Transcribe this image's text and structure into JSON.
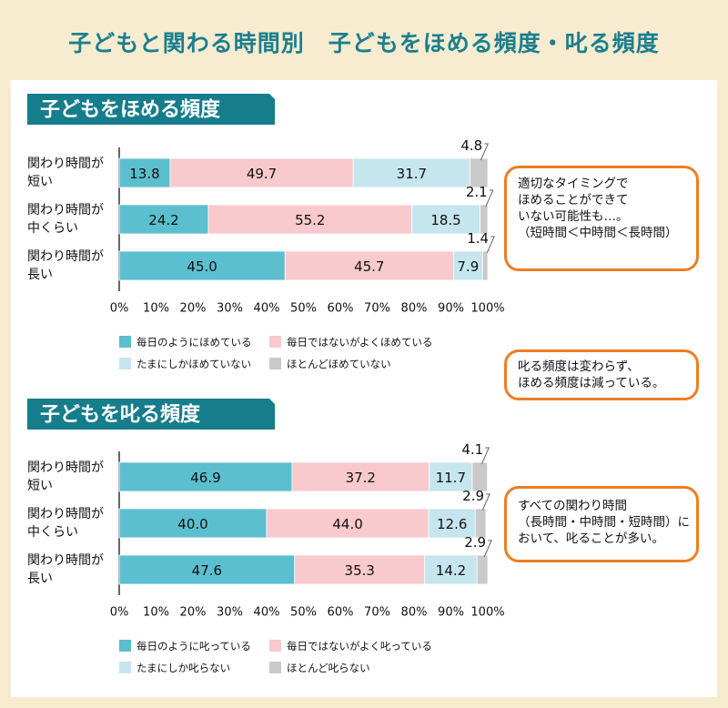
{
  "title": "子どもと関わる時間別　子どもをほめる頻度・叱る頻度",
  "colors": {
    "c1": "#5bbfcf",
    "c2": "#f8c9cd",
    "c3": "#c5e6ee",
    "c4": "#c9c9c9",
    "header": "#167d8c",
    "accent": "#ee7d22",
    "bg": "#f8ecd0"
  },
  "chart_data": [
    {
      "type": "bar",
      "stacked": true,
      "orientation": "horizontal",
      "title": "子どもをほめる頻度",
      "categories": [
        [
          "関わり時間が",
          "短い"
        ],
        [
          "関わり時間が",
          "中くらい"
        ],
        [
          "関わり時間が",
          "長い"
        ]
      ],
      "series": [
        {
          "name": "毎日のようにほめている",
          "values": [
            13.8,
            24.2,
            45.0
          ]
        },
        {
          "name": "毎日ではないがよくほめている",
          "values": [
            49.7,
            55.2,
            45.7
          ]
        },
        {
          "name": "たまにしかほめていない",
          "values": [
            31.7,
            18.5,
            7.9
          ]
        },
        {
          "name": "ほとんどほめていない",
          "values": [
            4.8,
            2.1,
            1.4
          ]
        }
      ],
      "labels": [
        [
          "13.8",
          "49.7",
          "31.7",
          "4.8"
        ],
        [
          "24.2",
          "55.2",
          "18.5",
          "2.1"
        ],
        [
          "45.0",
          "45.7",
          "7.9",
          "1.4"
        ]
      ],
      "xticks": [
        "0%",
        "10%",
        "20%",
        "30%",
        "40%",
        "50%",
        "60%",
        "70%",
        "80%",
        "90%",
        "100%"
      ],
      "xlim": [
        0,
        100
      ]
    },
    {
      "type": "bar",
      "stacked": true,
      "orientation": "horizontal",
      "title": "子どもを叱る頻度",
      "categories": [
        [
          "関わり時間が",
          "短い"
        ],
        [
          "関わり時間が",
          "中くらい"
        ],
        [
          "関わり時間が",
          "長い"
        ]
      ],
      "series": [
        {
          "name": "毎日のように叱っている",
          "values": [
            46.9,
            40.0,
            47.6
          ]
        },
        {
          "name": "毎日ではないがよく叱っている",
          "values": [
            37.2,
            44.0,
            35.3
          ]
        },
        {
          "name": "たまにしか叱らない",
          "values": [
            11.7,
            12.6,
            14.2
          ]
        },
        {
          "name": "ほとんど叱らない",
          "values": [
            4.1,
            2.9,
            2.9
          ]
        }
      ],
      "labels": [
        [
          "46.9",
          "37.2",
          "11.7",
          "4.1"
        ],
        [
          "40.0",
          "44.0",
          "12.6",
          "2.9"
        ],
        [
          "47.6",
          "35.3",
          "14.2",
          "2.9"
        ]
      ],
      "xticks": [
        "0%",
        "10%",
        "20%",
        "30%",
        "40%",
        "50%",
        "60%",
        "70%",
        "80%",
        "90%",
        "100%"
      ],
      "xlim": [
        0,
        100
      ]
    }
  ],
  "notes": [
    [
      "適切なタイミングで",
      "ほめることができて",
      "いない可能性も…。",
      "（短時間＜中時間＜長時間）"
    ],
    [
      "叱る頻度は変わらず、",
      "ほめる頻度は減っている。"
    ],
    [
      "すべての関わり時間",
      "（長時間・中時間・短時間）に",
      "おいて、叱ることが多い。"
    ]
  ]
}
